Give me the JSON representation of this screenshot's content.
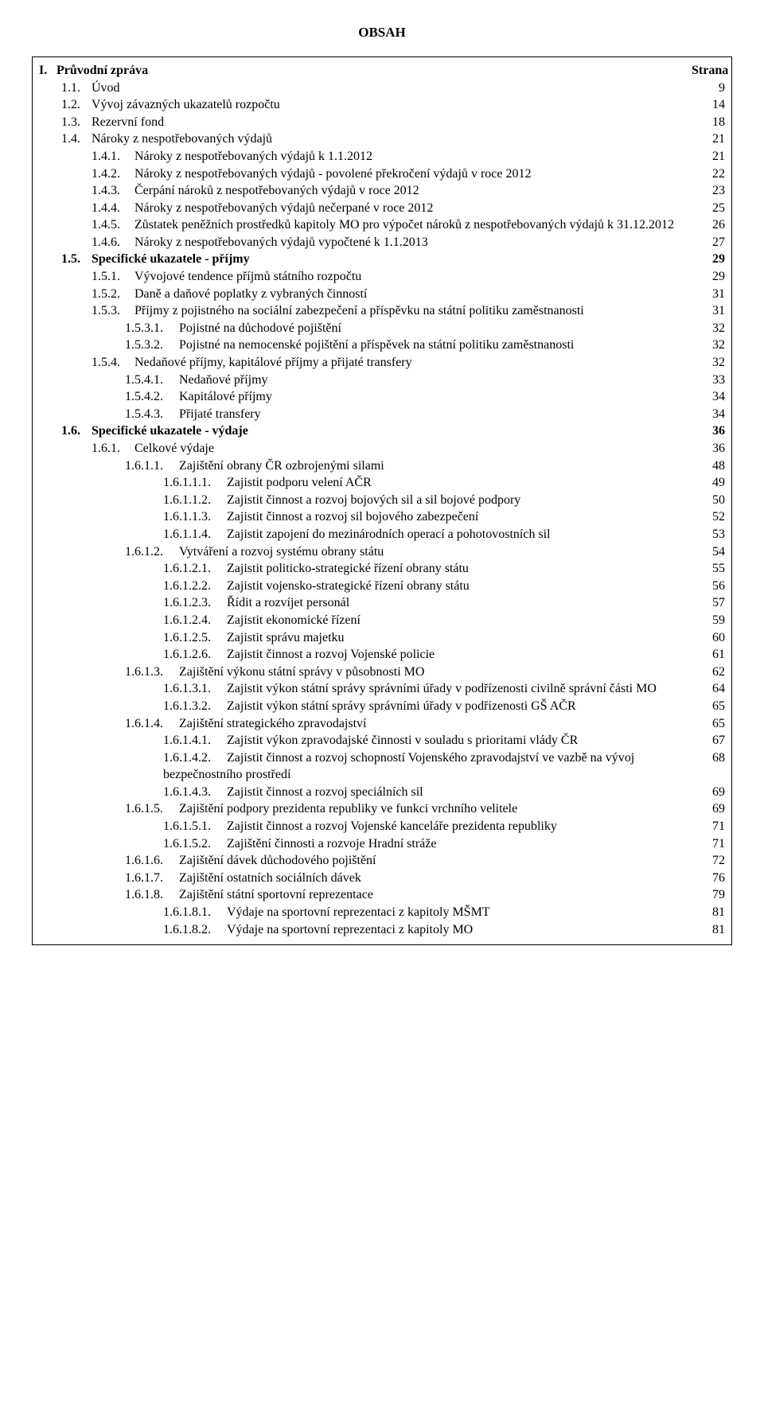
{
  "title": "OBSAH",
  "page_header_right": "Strana",
  "colors": {
    "text": "#000000",
    "bg": "#ffffff",
    "border": "#000000"
  },
  "fontsize": 16,
  "entries": [
    {
      "num": "I.",
      "label": "Průvodní zpráva",
      "page": "",
      "level": 0,
      "bold": true
    },
    {
      "num": "1.1.",
      "label": "Úvod",
      "page": "9",
      "level": 1,
      "bold": false
    },
    {
      "num": "1.2.",
      "label": "Vývoj závazných ukazatelů rozpočtu",
      "page": "14",
      "level": 1,
      "bold": false
    },
    {
      "num": "1.3.",
      "label": "Rezervní fond",
      "page": "18",
      "level": 1,
      "bold": false
    },
    {
      "num": "1.4.",
      "label": "Nároky z nespotřebovaných výdajů",
      "page": "21",
      "level": 1,
      "bold": false
    },
    {
      "num": "1.4.1.",
      "label": "Nároky z nespotřebovaných výdajů k 1.1.2012",
      "page": "21",
      "level": 2,
      "bold": false
    },
    {
      "num": "1.4.2.",
      "label": "Nároky z nespotřebovaných výdajů - povolené překročení výdajů v roce 2012",
      "page": "22",
      "level": 2,
      "bold": false
    },
    {
      "num": "1.4.3.",
      "label": "Čerpání nároků z nespotřebovaných výdajů v roce 2012",
      "page": "23",
      "level": 2,
      "bold": false
    },
    {
      "num": "1.4.4.",
      "label": "Nároky z nespotřebovaných výdajů nečerpané v roce 2012",
      "page": "25",
      "level": 2,
      "bold": false
    },
    {
      "num": "1.4.5.",
      "label": "Zůstatek peněžních prostředků kapitoly MO pro výpočet nároků z nespotřebovaných výdajů k 31.12.2012",
      "page": "26",
      "level": 2,
      "bold": false
    },
    {
      "num": "1.4.6.",
      "label": "Nároky z nespotřebovaných výdajů vypočtené k 1.1.2013",
      "page": "27",
      "level": 2,
      "bold": false
    },
    {
      "num": "1.5.",
      "label": "Specifické ukazatele - příjmy",
      "page": "29",
      "level": 1,
      "bold": true
    },
    {
      "num": "1.5.1.",
      "label": "Vývojové tendence příjmů státního rozpočtu",
      "page": "29",
      "level": 2,
      "bold": false
    },
    {
      "num": "1.5.2.",
      "label": "Daně a daňové poplatky z vybraných činností",
      "page": "31",
      "level": 2,
      "bold": false
    },
    {
      "num": "1.5.3.",
      "label": "Příjmy z pojistného na sociální zabezpečení a příspěvku na státní politiku zaměstnanosti",
      "page": "31",
      "level": 2,
      "bold": false
    },
    {
      "num": "1.5.3.1.",
      "label": "Pojistné na důchodové pojištění",
      "page": "32",
      "level": 3,
      "bold": false
    },
    {
      "num": "1.5.3.2.",
      "label": "Pojistné na nemocenské pojištění a příspěvek na státní politiku zaměstnanosti",
      "page": "32",
      "level": 3,
      "bold": false
    },
    {
      "num": "1.5.4.",
      "label": "Nedaňové příjmy, kapitálové příjmy a přijaté transfery",
      "page": "32",
      "level": 2,
      "bold": false
    },
    {
      "num": "1.5.4.1.",
      "label": "Nedaňové příjmy",
      "page": "33",
      "level": 3,
      "bold": false
    },
    {
      "num": "1.5.4.2.",
      "label": "Kapitálové příjmy",
      "page": "34",
      "level": 3,
      "bold": false
    },
    {
      "num": "1.5.4.3.",
      "label": "Přijaté transfery",
      "page": "34",
      "level": 3,
      "bold": false
    },
    {
      "num": "1.6.",
      "label": "Specifické ukazatele - výdaje",
      "page": "36",
      "level": 1,
      "bold": true
    },
    {
      "num": "1.6.1.",
      "label": "Celkové výdaje",
      "page": "36",
      "level": 2,
      "bold": false
    },
    {
      "num": "1.6.1.1.",
      "label": "Zajištění obrany ČR ozbrojenými silami",
      "page": "48",
      "level": 3,
      "bold": false
    },
    {
      "num": "1.6.1.1.1.",
      "label": "Zajistit podporu velení AČR",
      "page": "49",
      "level": 4,
      "bold": false
    },
    {
      "num": "1.6.1.1.2.",
      "label": "Zajistit činnost a rozvoj bojových sil a sil bojové podpory",
      "page": "50",
      "level": 4,
      "bold": false
    },
    {
      "num": "1.6.1.1.3.",
      "label": "Zajistit činnost a rozvoj sil bojového zabezpečení",
      "page": "52",
      "level": 4,
      "bold": false
    },
    {
      "num": "1.6.1.1.4.",
      "label": "Zajistit zapojení do mezinárodních operací a pohotovostních sil",
      "page": "53",
      "level": 4,
      "bold": false
    },
    {
      "num": "1.6.1.2.",
      "label": "Vytváření a rozvoj systému obrany státu",
      "page": "54",
      "level": 3,
      "bold": false
    },
    {
      "num": "1.6.1.2.1.",
      "label": "Zajistit politicko-strategické řízení obrany státu",
      "page": "55",
      "level": 4,
      "bold": false
    },
    {
      "num": "1.6.1.2.2.",
      "label": "Zajistit vojensko-strategické řízení obrany státu",
      "page": "56",
      "level": 4,
      "bold": false
    },
    {
      "num": "1.6.1.2.3.",
      "label": "Řídit a rozvíjet personál",
      "page": "57",
      "level": 4,
      "bold": false
    },
    {
      "num": "1.6.1.2.4.",
      "label": "Zajistit ekonomické řízení",
      "page": "59",
      "level": 4,
      "bold": false
    },
    {
      "num": "1.6.1.2.5.",
      "label": "Zajistit správu majetku",
      "page": "60",
      "level": 4,
      "bold": false
    },
    {
      "num": "1.6.1.2.6.",
      "label": "Zajistit činnost a rozvoj Vojenské policie",
      "page": "61",
      "level": 4,
      "bold": false
    },
    {
      "num": "1.6.1.3.",
      "label": "Zajištění výkonu státní správy v působnosti MO",
      "page": "62",
      "level": 3,
      "bold": false
    },
    {
      "num": "1.6.1.3.1.",
      "label": "Zajistit výkon státní správy správními úřady v podřízenosti civilně správní části MO",
      "page": "64",
      "level": 4,
      "bold": false
    },
    {
      "num": "1.6.1.3.2.",
      "label": "Zajistit výkon státní správy správními úřady v podřízenosti GŠ AČR",
      "page": "65",
      "level": 4,
      "bold": false
    },
    {
      "num": "1.6.1.4.",
      "label": "Zajištění strategického zpravodajství",
      "page": "65",
      "level": 3,
      "bold": false
    },
    {
      "num": "1.6.1.4.1.",
      "label": "Zajistit výkon zpravodajské činnosti v souladu s prioritami vlády ČR",
      "page": "67",
      "level": 4,
      "bold": false
    },
    {
      "num": "1.6.1.4.2.",
      "label": "Zajistit činnost a rozvoj schopností Vojenského zpravodajství ve vazbě na vývoj bezpečnostního prostředí",
      "page": "68",
      "level": 4,
      "bold": false
    },
    {
      "num": "1.6.1.4.3.",
      "label": "Zajistit činnost a rozvoj speciálních sil",
      "page": "69",
      "level": 4,
      "bold": false
    },
    {
      "num": "1.6.1.5.",
      "label": "Zajištění podpory prezidenta republiky ve funkci vrchního velitele",
      "page": "69",
      "level": 3,
      "bold": false
    },
    {
      "num": "1.6.1.5.1.",
      "label": "Zajistit činnost a rozvoj Vojenské kanceláře prezidenta republiky",
      "page": "71",
      "level": 4,
      "bold": false
    },
    {
      "num": "1.6.1.5.2.",
      "label": "Zajištění činnosti a rozvoje Hradní stráže",
      "page": "71",
      "level": 4,
      "bold": false
    },
    {
      "num": "1.6.1.6.",
      "label": "Zajištění dávek důchodového pojištění",
      "page": "72",
      "level": 3,
      "bold": false
    },
    {
      "num": "1.6.1.7.",
      "label": "Zajištění ostatních sociálních dávek",
      "page": "76",
      "level": 3,
      "bold": false
    },
    {
      "num": "1.6.1.8.",
      "label": "Zajištění státní sportovní reprezentace",
      "page": "79",
      "level": 3,
      "bold": false
    },
    {
      "num": "1.6.1.8.1.",
      "label": "Výdaje na sportovní reprezentaci z kapitoly MŠMT",
      "page": "81",
      "level": 4,
      "bold": false
    },
    {
      "num": "1.6.1.8.2.",
      "label": "Výdaje na sportovní reprezentaci z kapitoly MO",
      "page": "81",
      "level": 4,
      "bold": false
    }
  ]
}
